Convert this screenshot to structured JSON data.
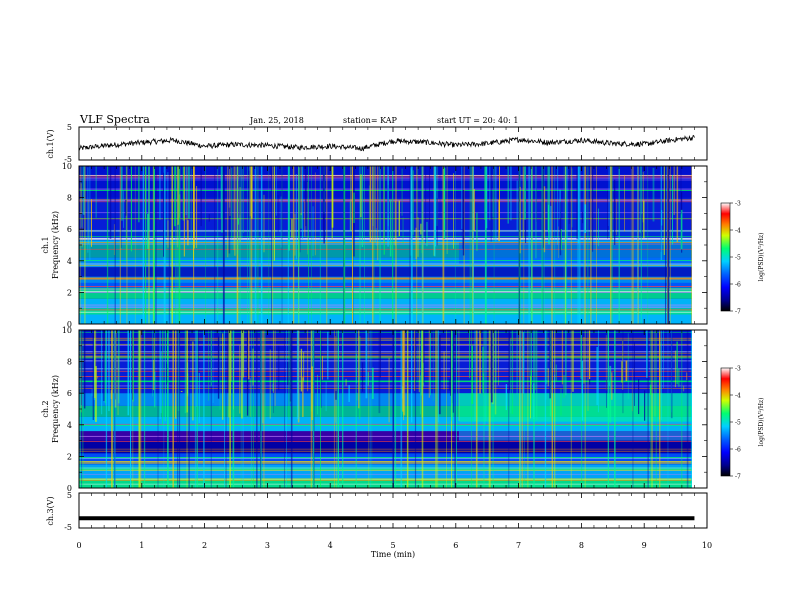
{
  "header": {
    "title": "VLF Spectra",
    "date": "Jan. 25, 2018",
    "station": "station= KAP",
    "start": "start  UT =   20: 40: 1"
  },
  "colors": {
    "waveform": "#000000",
    "colorbar": [
      "#000000",
      "#00008f",
      "#0000ff",
      "#0060ff",
      "#00d0ff",
      "#00ff70",
      "#d0ff00",
      "#ff8000",
      "#ff0000",
      "#ffffff"
    ]
  },
  "chart_data": [
    {
      "type": "line",
      "panel": "ch1-waveform",
      "ylabel": "ch.1(V)",
      "ylim": [
        -5,
        5
      ],
      "yticks": [
        "5",
        "-5"
      ],
      "xlim": [
        0,
        10
      ],
      "series": [
        {
          "x": [
            0,
            0.5,
            1,
            1.5,
            2,
            2.5,
            3,
            3.5,
            4,
            4.5,
            5,
            5.5,
            6,
            6.5,
            7,
            7.5,
            8,
            8.5,
            9,
            9.5,
            9.8
          ],
          "values": [
            -1.5,
            -0.5,
            0.3,
            1.0,
            -0.8,
            -0.3,
            -0.6,
            -1.2,
            -0.8,
            -1.5,
            0.8,
            0.4,
            -0.5,
            0.0,
            1.2,
            0.3,
            1.0,
            0.0,
            -0.2,
            1.2,
            1.8
          ]
        }
      ]
    },
    {
      "type": "heatmap",
      "panel": "ch1-spectrogram",
      "ylabel_top": "ch.1",
      "ylabel": "Frequency (kHz)",
      "ylim": [
        0,
        10
      ],
      "yticks": [
        "10",
        "8",
        "6",
        "4",
        "2",
        "0"
      ],
      "xlim": [
        0,
        10
      ],
      "colorbar": {
        "label": "log(PSD)(V²/Hz)",
        "ticks": [
          "-3",
          "-4",
          "-5",
          "-6",
          "-7"
        ],
        "range": [
          -7,
          -3
        ]
      }
    },
    {
      "type": "heatmap",
      "panel": "ch2-spectrogram",
      "ylabel_top": "ch.2",
      "ylabel": "Frequency (kHz)",
      "ylim": [
        0,
        10
      ],
      "yticks": [
        "10",
        "8",
        "6",
        "4",
        "2",
        "0"
      ],
      "xlim": [
        0,
        10
      ],
      "colorbar": {
        "label": "log(PSD)(V²/Hz)",
        "ticks": [
          "-3",
          "-4",
          "-5",
          "-6",
          "-7"
        ],
        "range": [
          -7,
          -3
        ]
      }
    },
    {
      "type": "line",
      "panel": "ch3-waveform",
      "ylabel": "ch.3(V)",
      "ylim": [
        -5,
        5
      ],
      "yticks": [
        "5",
        "-5"
      ],
      "xlim": [
        0,
        10
      ],
      "series": [
        {
          "x": [
            0,
            9.8
          ],
          "values": [
            -2.2,
            -2.2
          ]
        }
      ]
    }
  ],
  "xaxis": {
    "label": "Time (min)",
    "ticks": [
      "0",
      "1",
      "2",
      "3",
      "4",
      "5",
      "6",
      "7",
      "8",
      "9",
      "10"
    ]
  }
}
